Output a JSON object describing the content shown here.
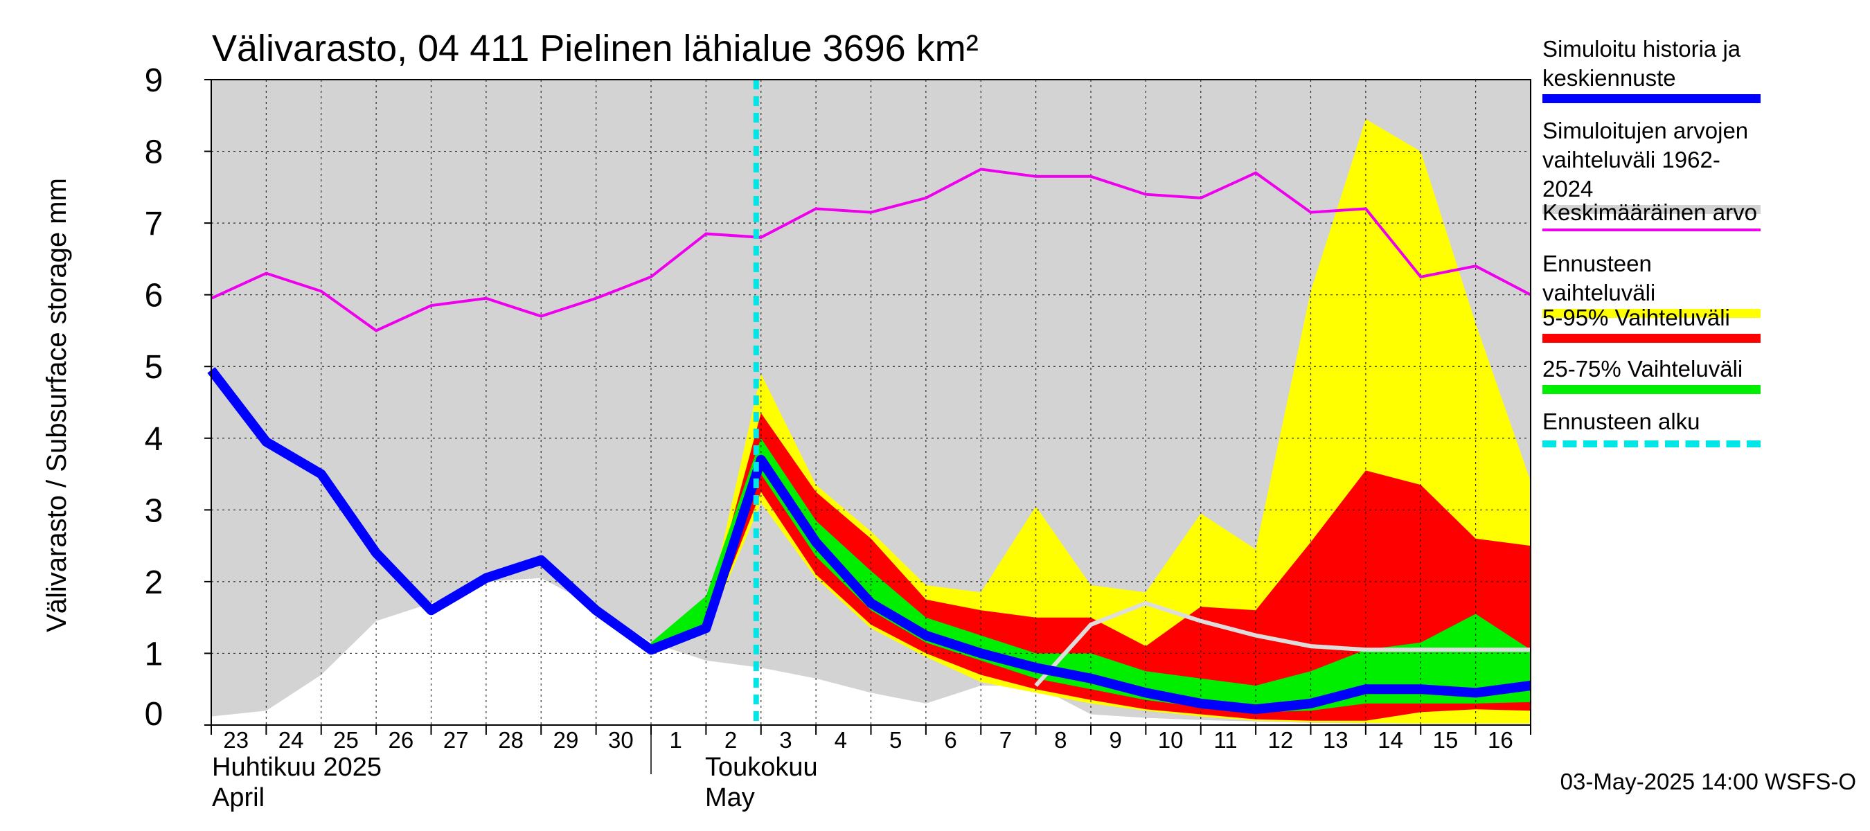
{
  "chart_data": {
    "type": "area",
    "title": "Välivarasto, 04 411 Pielinen lähialue 3696 km²",
    "ylabel": "Välivarasto / Subsurface storage  mm",
    "ylim": [
      0,
      9
    ],
    "yticks": [
      0,
      1,
      2,
      3,
      4,
      5,
      6,
      7,
      8,
      9
    ],
    "x_tick_labels": [
      "23",
      "24",
      "25",
      "26",
      "27",
      "28",
      "29",
      "30",
      "1",
      "2",
      "3",
      "4",
      "5",
      "6",
      "7",
      "8",
      "9",
      "10",
      "11",
      "12",
      "13",
      "14",
      "15",
      "16"
    ],
    "month_labels": [
      {
        "fi": "Huhtikuu  2025",
        "en": "April"
      },
      {
        "fi": "Toukokuu",
        "en": "May"
      }
    ],
    "x_days": [
      0,
      1,
      2,
      3,
      4,
      5,
      6,
      7,
      8,
      9,
      10,
      11,
      12,
      13,
      14,
      15,
      16,
      17,
      18,
      19,
      20,
      21,
      22,
      23,
      24
    ],
    "forecast_start_day": 10,
    "series": [
      {
        "name": "Simuloitujen arvojen vaihteluväli 1962-2024",
        "color": "#d3d3d3",
        "days": [
          0,
          1,
          2,
          3,
          4,
          5,
          6,
          7,
          8,
          9,
          10,
          11,
          12,
          13,
          14,
          15,
          16,
          17,
          18,
          19,
          20,
          21,
          22,
          23,
          24
        ],
        "lower": [
          0.12,
          0.2,
          0.7,
          1.45,
          1.7,
          2.0,
          2.05,
          1.65,
          1.15,
          0.9,
          0.8,
          0.65,
          0.45,
          0.3,
          0.55,
          0.55,
          0.15,
          0.1,
          0.07,
          0.05,
          0.03,
          0.02,
          0.02,
          0.02,
          0.02
        ],
        "upper": [
          9,
          9,
          9,
          9,
          9,
          9,
          9,
          9,
          9,
          9,
          9,
          9,
          9,
          9,
          9,
          9,
          9,
          9,
          9,
          9,
          9,
          9,
          9,
          9,
          9
        ]
      },
      {
        "name": "Ennusteen vaihteluväli",
        "color": "#ffff00",
        "days": [
          8,
          9,
          10,
          11,
          12,
          13,
          14,
          15,
          16,
          17,
          18,
          19,
          20,
          21,
          22,
          23,
          24
        ],
        "lower": [
          1.1,
          1.3,
          3.1,
          2.05,
          1.35,
          0.95,
          0.6,
          0.45,
          0.3,
          0.2,
          0.12,
          0.06,
          0.04,
          0.03,
          0.02,
          0.02,
          0.02
        ],
        "upper": [
          1.15,
          1.5,
          4.9,
          3.35,
          2.7,
          1.95,
          1.85,
          3.05,
          1.95,
          1.85,
          2.95,
          2.45,
          6.05,
          8.45,
          8.0,
          5.6,
          3.4
        ]
      },
      {
        "name": "5-95% Vaihteluväli",
        "color": "#ff0000",
        "days": [
          8,
          9,
          10,
          11,
          12,
          13,
          14,
          15,
          16,
          17,
          18,
          19,
          20,
          21,
          22,
          23,
          24
        ],
        "lower": [
          1.1,
          1.3,
          3.25,
          2.1,
          1.4,
          1.0,
          0.7,
          0.5,
          0.35,
          0.22,
          0.15,
          0.08,
          0.06,
          0.06,
          0.18,
          0.22,
          0.2
        ],
        "upper": [
          1.15,
          1.5,
          4.35,
          3.25,
          2.6,
          1.75,
          1.6,
          1.5,
          1.5,
          1.1,
          1.65,
          1.6,
          2.55,
          3.55,
          3.35,
          2.6,
          2.5
        ]
      },
      {
        "name": "25-75% Vaihteluväli",
        "color": "#00ee00",
        "days": [
          8,
          9,
          10,
          11,
          12,
          13,
          14,
          15,
          16,
          17,
          18,
          19,
          20,
          21,
          22,
          23,
          24
        ],
        "lower": [
          1.1,
          1.3,
          3.5,
          2.35,
          1.6,
          1.15,
          0.9,
          0.65,
          0.5,
          0.35,
          0.25,
          0.18,
          0.2,
          0.3,
          0.3,
          0.3,
          0.32
        ],
        "upper": [
          1.15,
          1.8,
          4.0,
          2.85,
          2.15,
          1.5,
          1.25,
          1.0,
          1.0,
          0.75,
          0.65,
          0.55,
          0.75,
          1.05,
          1.15,
          1.55,
          1.05
        ]
      },
      {
        "name": "Simuloitu historia ja keskiennuste",
        "color": "#0000ff",
        "days": [
          0,
          1,
          2,
          3,
          4,
          5,
          6,
          7,
          8,
          9,
          10,
          11,
          12,
          13,
          14,
          15,
          16,
          17,
          18,
          19,
          20,
          21,
          22,
          23,
          24
        ],
        "values": [
          4.95,
          3.95,
          3.5,
          2.4,
          1.6,
          2.05,
          2.3,
          1.6,
          1.05,
          1.35,
          3.7,
          2.55,
          1.7,
          1.25,
          1.0,
          0.8,
          0.65,
          0.45,
          0.3,
          0.22,
          0.3,
          0.5,
          0.5,
          0.45,
          0.55
        ]
      },
      {
        "name": "Keskimääräinen arvo",
        "color": "#ee00ee",
        "days": [
          0,
          1,
          2,
          3,
          4,
          5,
          6,
          7,
          8,
          9,
          10,
          11,
          12,
          13,
          14,
          15,
          16,
          17,
          18,
          19,
          20,
          21,
          22,
          23,
          24
        ],
        "values": [
          5.95,
          6.3,
          6.05,
          5.5,
          5.85,
          5.95,
          5.7,
          5.95,
          6.25,
          6.85,
          6.8,
          7.2,
          7.15,
          7.35,
          7.75,
          7.65,
          7.65,
          7.4,
          7.35,
          7.7,
          7.15,
          7.2,
          6.25,
          6.4,
          6.0
        ]
      },
      {
        "name": "",
        "color": "#dddddd",
        "days": [
          15,
          16,
          17,
          18,
          19,
          20,
          21,
          22,
          23,
          24
        ],
        "values": [
          0.55,
          1.4,
          1.7,
          1.45,
          1.25,
          1.1,
          1.05,
          1.05,
          1.05,
          1.05
        ]
      }
    ],
    "legend_position": "right",
    "grid": true
  },
  "legend": {
    "items": [
      {
        "label": "Simuloitu historia ja keskiennuste",
        "color": "#0000ff",
        "style": "line"
      },
      {
        "label": "Simuloitujen arvojen vaihteluväli 1962-2024",
        "color": "#d3d3d3",
        "style": "band"
      },
      {
        "label": "Keskimääräinen arvo",
        "color": "#ee00ee",
        "style": "thin"
      },
      {
        "label": "Ennusteen vaihteluväli",
        "color": "#ffff00",
        "style": "band"
      },
      {
        "label": "5-95% Vaihteluväli",
        "color": "#ff0000",
        "style": "band"
      },
      {
        "label": "25-75% Vaihteluväli",
        "color": "#00ee00",
        "style": "band"
      },
      {
        "label": "Ennusteen alku",
        "color": "#00e5e5",
        "style": "dash"
      }
    ]
  },
  "footer": "03-May-2025 14:00 WSFS-O"
}
